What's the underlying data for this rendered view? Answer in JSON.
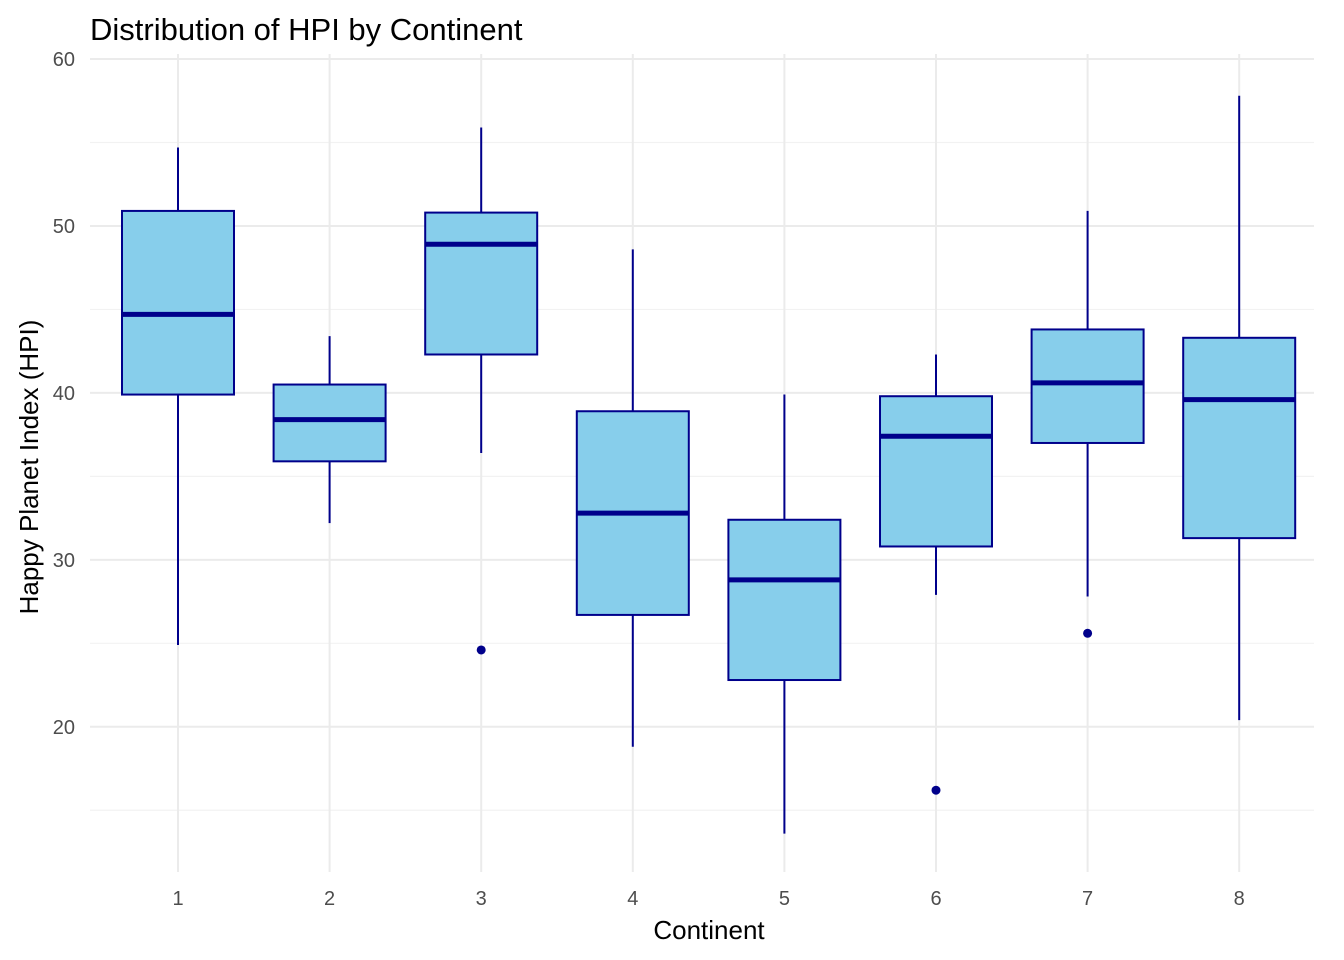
{
  "chart_data": {
    "type": "boxplot",
    "title": "Distribution of HPI by Continent",
    "xlabel": "Continent",
    "ylabel": "Happy Planet Index (HPI)",
    "categories": [
      "1",
      "2",
      "3",
      "4",
      "5",
      "6",
      "7",
      "8"
    ],
    "ylim": [
      11.3,
      60.3
    ],
    "y_ticks": [
      20,
      30,
      40,
      50,
      60
    ],
    "y_minor_ticks": [
      15,
      25,
      35,
      45,
      55
    ],
    "grid": true,
    "legend": "none",
    "colors": {
      "box_fill": "#87ceeb",
      "box_stroke": "#00008b",
      "grid": "#ebebeb"
    },
    "boxes": [
      {
        "category": "1",
        "whisker_low": 24.9,
        "q1": 39.9,
        "median": 44.7,
        "q3": 50.9,
        "whisker_high": 54.7,
        "outliers": []
      },
      {
        "category": "2",
        "whisker_low": 32.2,
        "q1": 35.9,
        "median": 38.4,
        "q3": 40.5,
        "whisker_high": 43.4,
        "outliers": []
      },
      {
        "category": "3",
        "whisker_low": 36.4,
        "q1": 42.3,
        "median": 48.9,
        "q3": 50.8,
        "whisker_high": 55.9,
        "outliers": [
          24.6
        ]
      },
      {
        "category": "4",
        "whisker_low": 18.8,
        "q1": 26.7,
        "median": 32.8,
        "q3": 38.9,
        "whisker_high": 48.6,
        "outliers": []
      },
      {
        "category": "5",
        "whisker_low": 13.6,
        "q1": 22.8,
        "median": 28.8,
        "q3": 32.4,
        "whisker_high": 39.9,
        "outliers": []
      },
      {
        "category": "6",
        "whisker_low": 27.9,
        "q1": 30.8,
        "median": 37.4,
        "q3": 39.8,
        "whisker_high": 42.3,
        "outliers": [
          16.2
        ]
      },
      {
        "category": "7",
        "whisker_low": 27.8,
        "q1": 37.0,
        "median": 40.6,
        "q3": 43.8,
        "whisker_high": 50.9,
        "outliers": [
          25.6
        ]
      },
      {
        "category": "8",
        "whisker_low": 20.4,
        "q1": 31.3,
        "median": 39.6,
        "q3": 43.3,
        "whisker_high": 57.8,
        "outliers": []
      }
    ]
  }
}
